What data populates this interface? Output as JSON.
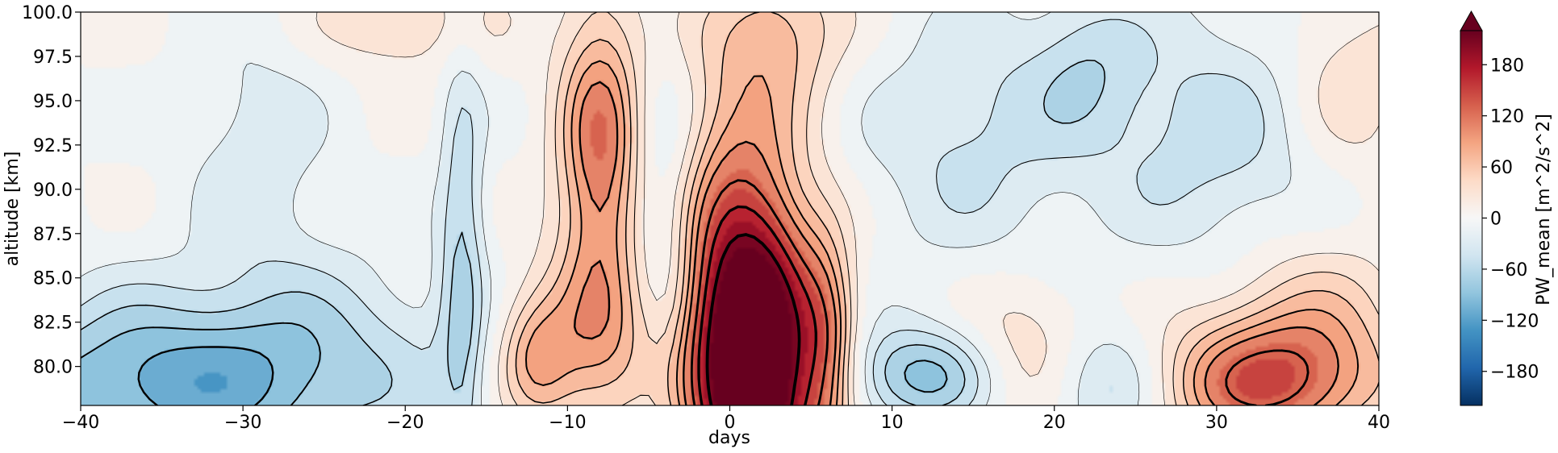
{
  "chart_data": {
    "type": "heatmap",
    "title": "",
    "xlabel": "days",
    "ylabel": "altitude [km]",
    "colorbar_label": "PW_mean [m^2/s^2]",
    "colormap": "RdBu_r",
    "colorbar_extend": "max",
    "xlim": [
      -40,
      40
    ],
    "ylim": [
      77.8,
      100.0
    ],
    "xticks": [
      -40,
      -30,
      -20,
      -10,
      0,
      10,
      20,
      30,
      40
    ],
    "xtick_labels": [
      "−40",
      "−30",
      "−20",
      "−10",
      "0",
      "10",
      "20",
      "30",
      "40"
    ],
    "yticks": [
      80.0,
      82.5,
      85.0,
      87.5,
      90.0,
      92.5,
      95.0,
      97.5,
      100.0
    ],
    "ytick_labels": [
      "80.0",
      "82.5",
      "85.0",
      "87.5",
      "90.0",
      "92.5",
      "95.0",
      "97.5",
      "100.0"
    ],
    "colorbar_ticks": [
      -180,
      -120,
      -60,
      0,
      60,
      120,
      180
    ],
    "colorbar_tick_labels": [
      "−180",
      "−120",
      "−60",
      "0",
      "60",
      "120",
      "180"
    ],
    "colorbar_range": [
      -220,
      220
    ],
    "contour_overlay": "black contour lines of field magnitude",
    "features": [
      {
        "x": 1.5,
        "y": 79.0,
        "value": 260,
        "sx": 2.4,
        "sy": 5.5
      },
      {
        "x": 0.5,
        "y": 86.0,
        "value": 130,
        "sx": 3.0,
        "sy": 7.0
      },
      {
        "x": 6.0,
        "y": 81.0,
        "value": 85,
        "sx": 1.3,
        "sy": 4.5
      },
      {
        "x": -8.0,
        "y": 92.0,
        "value": 120,
        "sx": 1.8,
        "sy": 6.0
      },
      {
        "x": -8.5,
        "y": 81.0,
        "value": 70,
        "sx": 3.0,
        "sy": 3.5
      },
      {
        "x": -12.0,
        "y": 80.5,
        "value": 60,
        "sx": 1.5,
        "sy": 2.5
      },
      {
        "x": 33.0,
        "y": 79.0,
        "value": 130,
        "sx": 5.0,
        "sy": 2.5
      },
      {
        "x": 35.5,
        "y": 83.0,
        "value": 50,
        "sx": 4.0,
        "sy": 3.0
      },
      {
        "x": 18.5,
        "y": 80.5,
        "value": 55,
        "sx": 3.0,
        "sy": 3.0
      },
      {
        "x": 3.0,
        "y": 99.0,
        "value": 60,
        "sx": 3.0,
        "sy": 3.0
      },
      {
        "x": -20.0,
        "y": 99.5,
        "value": 40,
        "sx": 4.0,
        "sy": 2.0
      },
      {
        "x": 38.0,
        "y": 96.0,
        "value": 40,
        "sx": 3.0,
        "sy": 4.0
      },
      {
        "x": -16.5,
        "y": 86.0,
        "value": -60,
        "sx": 1.0,
        "sy": 9.0
      },
      {
        "x": -36.0,
        "y": 79.0,
        "value": -100,
        "sx": 7.0,
        "sy": 3.5
      },
      {
        "x": -25.0,
        "y": 80.0,
        "value": -55,
        "sx": 6.0,
        "sy": 4.0
      },
      {
        "x": -4.0,
        "y": 88.0,
        "value": -55,
        "sx": 1.6,
        "sy": 6.0
      },
      {
        "x": 12.0,
        "y": 79.5,
        "value": -90,
        "sx": 3.5,
        "sy": 2.0
      },
      {
        "x": 23.0,
        "y": 79.0,
        "value": -70,
        "sx": 3.0,
        "sy": 2.5
      },
      {
        "x": 15.0,
        "y": 93.0,
        "value": -45,
        "sx": 5.0,
        "sy": 5.0
      },
      {
        "x": 30.0,
        "y": 93.0,
        "value": -50,
        "sx": 5.0,
        "sy": 5.0
      },
      {
        "x": -29.0,
        "y": 92.0,
        "value": -35,
        "sx": 3.0,
        "sy": 5.0
      },
      {
        "x": 22.0,
        "y": 97.0,
        "value": -40,
        "sx": 2.5,
        "sy": 3.0
      }
    ]
  }
}
